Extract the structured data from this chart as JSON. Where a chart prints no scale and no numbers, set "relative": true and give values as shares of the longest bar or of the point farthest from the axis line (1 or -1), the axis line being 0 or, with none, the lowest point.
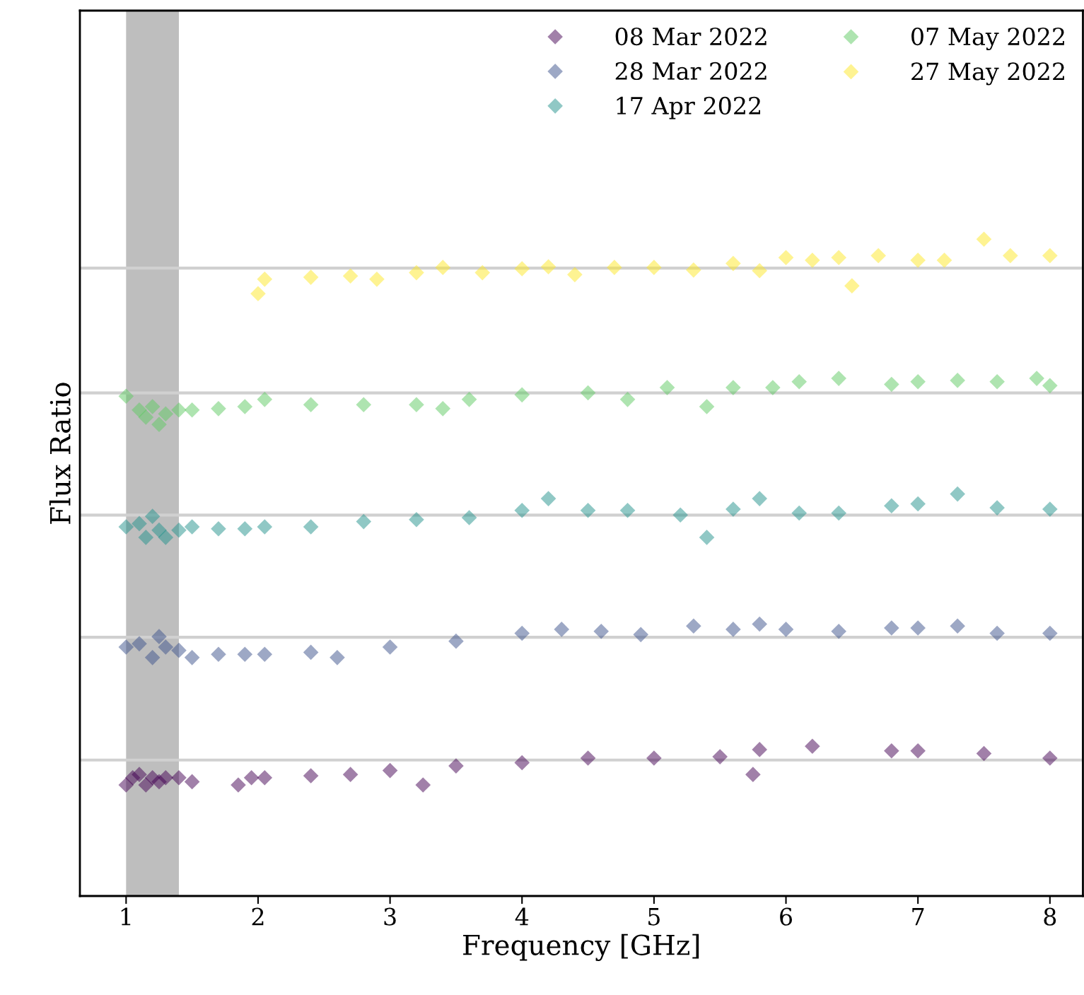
{
  "chart_data": {
    "type": "scatter",
    "xlabel": "Frequency [GHz]",
    "ylabel": "Flux Ratio",
    "relative": true,
    "marker": "diamond",
    "legend": "top right",
    "grid": false,
    "tick_labels": "x",
    "xlim": [
      0.65,
      8.25
    ],
    "xticks": [
      1,
      2,
      3,
      4,
      5,
      6,
      7,
      8
    ],
    "bands": [
      {
        "axis": "x",
        "from": 1.0,
        "to": 1.4,
        "color": "#bebebe"
      }
    ],
    "ref_lines": [
      {
        "axis": "y",
        "value": 0.956,
        "color": "#d0d0d0"
      },
      {
        "axis": "y",
        "value": 0.766,
        "color": "#d0d0d0"
      },
      {
        "axis": "y",
        "value": 0.58,
        "color": "#d0d0d0"
      },
      {
        "axis": "y",
        "value": 0.394,
        "color": "#d0d0d0"
      },
      {
        "axis": "y",
        "value": 0.207,
        "color": "#d0d0d0"
      }
    ],
    "series": [
      {
        "name": "08 Mar 2022",
        "color": "#440154",
        "x": [
          1.0,
          1.05,
          1.1,
          1.15,
          1.2,
          1.25,
          1.3,
          1.4,
          1.5,
          1.85,
          1.95,
          2.05,
          2.4,
          2.7,
          3.0,
          3.25,
          3.5,
          4.0,
          4.5,
          5.0,
          5.5,
          5.75,
          5.8,
          6.2,
          6.8,
          7.0,
          7.5,
          8.0
        ],
        "values": [
          0.169,
          0.18,
          0.185,
          0.169,
          0.18,
          0.174,
          0.18,
          0.18,
          0.174,
          0.169,
          0.18,
          0.18,
          0.183,
          0.185,
          0.191,
          0.169,
          0.198,
          0.203,
          0.21,
          0.21,
          0.212,
          0.185,
          0.223,
          0.228,
          0.221,
          0.221,
          0.217,
          0.21
        ]
      },
      {
        "name": "28 Mar 2022",
        "color": "#3b528b",
        "x": [
          1.0,
          1.1,
          1.2,
          1.25,
          1.3,
          1.4,
          1.5,
          1.7,
          1.9,
          2.05,
          2.4,
          2.6,
          3.0,
          3.5,
          4.0,
          4.3,
          4.6,
          4.9,
          5.3,
          5.6,
          5.8,
          6.0,
          6.4,
          6.8,
          7.0,
          7.3,
          7.6,
          8.0
        ],
        "values": [
          0.379,
          0.384,
          0.363,
          0.395,
          0.379,
          0.374,
          0.363,
          0.368,
          0.368,
          0.368,
          0.371,
          0.363,
          0.379,
          0.388,
          0.4,
          0.406,
          0.403,
          0.398,
          0.411,
          0.406,
          0.414,
          0.406,
          0.403,
          0.408,
          0.408,
          0.411,
          0.4,
          0.4
        ]
      },
      {
        "name": "17 Apr 2022",
        "color": "#21918c",
        "x": [
          1.0,
          1.1,
          1.15,
          1.2,
          1.25,
          1.3,
          1.4,
          1.5,
          1.7,
          1.9,
          2.05,
          2.4,
          2.8,
          3.2,
          3.6,
          4.0,
          4.2,
          4.5,
          4.8,
          5.2,
          5.4,
          5.6,
          5.8,
          6.1,
          6.4,
          6.8,
          7.0,
          7.3,
          7.6,
          8.0
        ],
        "values": [
          0.562,
          0.567,
          0.546,
          0.578,
          0.557,
          0.546,
          0.557,
          0.562,
          0.559,
          0.559,
          0.562,
          0.562,
          0.57,
          0.573,
          0.576,
          0.587,
          0.605,
          0.587,
          0.587,
          0.58,
          0.546,
          0.589,
          0.605,
          0.583,
          0.583,
          0.594,
          0.597,
          0.612,
          0.591,
          0.589
        ]
      },
      {
        "name": "07 May 2022",
        "color": "#5ec962",
        "x": [
          1.0,
          1.1,
          1.15,
          1.2,
          1.25,
          1.3,
          1.4,
          1.5,
          1.7,
          1.9,
          2.05,
          2.4,
          2.8,
          3.2,
          3.4,
          3.6,
          4.0,
          4.5,
          4.8,
          5.1,
          5.4,
          5.6,
          5.9,
          6.1,
          6.4,
          6.8,
          7.0,
          7.3,
          7.6,
          7.9,
          8.0
        ],
        "values": [
          0.761,
          0.74,
          0.729,
          0.745,
          0.718,
          0.734,
          0.74,
          0.74,
          0.742,
          0.745,
          0.756,
          0.748,
          0.748,
          0.748,
          0.742,
          0.756,
          0.763,
          0.766,
          0.756,
          0.774,
          0.745,
          0.774,
          0.774,
          0.783,
          0.788,
          0.779,
          0.783,
          0.785,
          0.783,
          0.788,
          0.777
        ]
      },
      {
        "name": "27 May 2022",
        "color": "#fde725",
        "x": [
          2.0,
          2.05,
          2.4,
          2.7,
          2.9,
          3.2,
          3.4,
          3.7,
          4.0,
          4.2,
          4.4,
          4.7,
          5.0,
          5.3,
          5.6,
          5.8,
          6.0,
          6.2,
          6.4,
          6.5,
          6.7,
          7.0,
          7.2,
          7.5,
          7.7,
          8.0
        ],
        "values": [
          0.917,
          0.939,
          0.942,
          0.944,
          0.939,
          0.949,
          0.957,
          0.949,
          0.955,
          0.958,
          0.946,
          0.957,
          0.957,
          0.953,
          0.963,
          0.952,
          0.972,
          0.968,
          0.972,
          0.929,
          0.975,
          0.968,
          0.968,
          1.0,
          0.975,
          0.975
        ]
      }
    ]
  }
}
